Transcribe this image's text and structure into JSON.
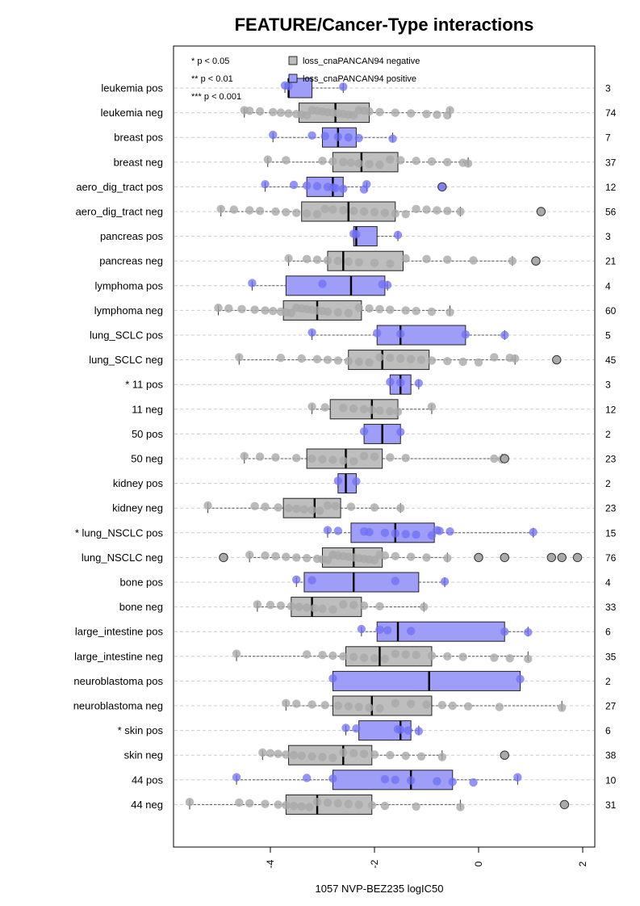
{
  "chart_data": {
    "type": "boxplot",
    "title": "FEATURE/Cancer-Type interactions",
    "xlabel": "1057 NVP-BEZ235 logIC50",
    "xlim": [
      -5.8,
      2.2
    ],
    "xticks": [
      -4,
      -2,
      0,
      2
    ],
    "grid": "horizontal dashed",
    "colors": {
      "negative": "#bebebe",
      "positive": "#9e9ef8",
      "neg_point": "#a9a9a9",
      "pos_point": "#6f6ff5"
    },
    "legend": {
      "position": "top-left",
      "significance": [
        "* p < 0.05",
        "** p < 0.01",
        "*** p < 0.001"
      ],
      "entries": [
        {
          "label": "loss_cnaPANCAN94 negative",
          "color": "#bebebe"
        },
        {
          "label": "loss_cnaPANCAN94 positive",
          "color": "#9e9ef8"
        }
      ]
    },
    "rows": [
      {
        "label": "leukemia pos",
        "n": "3",
        "group": "positive",
        "q1": -3.65,
        "median": -3.65,
        "q3": -3.2,
        "wlo": -3.72,
        "whi": -2.6,
        "outliers": [],
        "points": [
          -3.72,
          -3.65,
          -2.6
        ]
      },
      {
        "label": "leukemia neg",
        "n": "74",
        "group": "negative",
        "q1": -3.45,
        "median": -2.75,
        "q3": -2.1,
        "wlo": -4.5,
        "whi": -0.55,
        "outliers": [],
        "points": [
          -4.5,
          -4.4,
          -4.2,
          -3.95,
          -3.8,
          -3.65,
          -3.5,
          -3.4,
          -3.3,
          -3.2,
          -3.1,
          -3.0,
          -2.9,
          -2.8,
          -2.7,
          -2.6,
          -2.5,
          -2.4,
          -2.3,
          -2.2,
          -2.1,
          -1.9,
          -1.6,
          -1.3,
          -1.0,
          -0.8,
          -0.6,
          -0.55
        ]
      },
      {
        "label": "breast pos",
        "n": "7",
        "group": "positive",
        "q1": -3.0,
        "median": -2.7,
        "q3": -2.35,
        "wlo": -3.95,
        "whi": -1.65,
        "outliers": [],
        "points": [
          -3.95,
          -3.2,
          -2.95,
          -2.7,
          -2.5,
          -2.3,
          -1.65
        ]
      },
      {
        "label": "breast neg",
        "n": "37",
        "group": "negative",
        "q1": -2.8,
        "median": -2.25,
        "q3": -1.55,
        "wlo": -4.05,
        "whi": -0.2,
        "outliers": [],
        "points": [
          -4.05,
          -3.7,
          -3.0,
          -2.8,
          -2.6,
          -2.45,
          -2.3,
          -2.1,
          -1.9,
          -1.7,
          -1.5,
          -1.2,
          -0.9,
          -0.6,
          -0.3,
          -0.2
        ]
      },
      {
        "label": "aero_dig_tract pos",
        "n": "12",
        "group": "positive",
        "q1": -3.3,
        "median": -2.8,
        "q3": -2.6,
        "wlo": -4.1,
        "whi": -2.15,
        "outliers": [
          -0.7
        ],
        "points": [
          -4.1,
          -3.55,
          -3.3,
          -3.1,
          -2.9,
          -2.8,
          -2.75,
          -2.6,
          -2.2,
          -2.15
        ]
      },
      {
        "label": "aero_dig_tract neg",
        "n": "56",
        "group": "negative",
        "q1": -3.4,
        "median": -2.5,
        "q3": -1.6,
        "wlo": -4.95,
        "whi": -0.35,
        "outliers": [
          1.2
        ],
        "points": [
          -4.95,
          -4.7,
          -4.4,
          -4.2,
          -3.9,
          -3.7,
          -3.5,
          -3.3,
          -3.1,
          -2.95,
          -2.8,
          -2.6,
          -2.4,
          -2.2,
          -2.0,
          -1.8,
          -1.6,
          -1.4,
          -1.2,
          -1.0,
          -0.8,
          -0.6,
          -0.35
        ]
      },
      {
        "label": "pancreas pos",
        "n": "3",
        "group": "positive",
        "q1": -2.4,
        "median": -2.35,
        "q3": -1.95,
        "wlo": -2.4,
        "whi": -1.55,
        "outliers": [],
        "points": [
          -2.4,
          -2.35,
          -1.55
        ]
      },
      {
        "label": "pancreas neg",
        "n": "21",
        "group": "negative",
        "q1": -2.9,
        "median": -2.6,
        "q3": -1.45,
        "wlo": -3.65,
        "whi": 0.65,
        "outliers": [
          1.1
        ],
        "points": [
          -3.65,
          -3.3,
          -3.1,
          -2.9,
          -2.7,
          -2.5,
          -2.3,
          -2.0,
          -1.7,
          -1.4,
          -1.0,
          -0.6,
          -0.1,
          0.65
        ]
      },
      {
        "label": "lymphoma pos",
        "n": "4",
        "group": "positive",
        "q1": -3.7,
        "median": -2.45,
        "q3": -1.8,
        "wlo": -4.35,
        "whi": -1.75,
        "outliers": [],
        "points": [
          -4.35,
          -3.0,
          -1.85,
          -1.75
        ]
      },
      {
        "label": "lymphoma neg",
        "n": "60",
        "group": "negative",
        "q1": -3.75,
        "median": -3.1,
        "q3": -2.25,
        "wlo": -5.0,
        "whi": -0.55,
        "outliers": [],
        "points": [
          -5.0,
          -4.8,
          -4.55,
          -4.3,
          -4.1,
          -3.95,
          -3.8,
          -3.7,
          -3.6,
          -3.5,
          -3.4,
          -3.3,
          -3.2,
          -3.1,
          -3.0,
          -2.9,
          -2.7,
          -2.5,
          -2.3,
          -2.1,
          -1.9,
          -1.7,
          -1.4,
          -1.2,
          -0.9,
          -0.55
        ]
      },
      {
        "label": "lung_SCLC pos",
        "n": "5",
        "group": "positive",
        "q1": -1.95,
        "median": -1.5,
        "q3": -0.25,
        "wlo": -3.2,
        "whi": 0.5,
        "outliers": [],
        "points": [
          -3.2,
          -1.95,
          -1.5,
          -0.25,
          0.5
        ]
      },
      {
        "label": "lung_SCLC neg",
        "n": "45",
        "group": "negative",
        "q1": -2.5,
        "median": -1.85,
        "q3": -0.95,
        "wlo": -4.6,
        "whi": 0.7,
        "outliers": [
          1.5
        ],
        "points": [
          -4.6,
          -3.8,
          -3.4,
          -3.1,
          -2.9,
          -2.7,
          -2.5,
          -2.3,
          -2.1,
          -1.9,
          -1.7,
          -1.5,
          -1.3,
          -1.1,
          -0.9,
          -0.6,
          -0.3,
          0.0,
          0.3,
          0.6,
          0.7
        ]
      },
      {
        "label": "* 11 pos",
        "n": "3",
        "group": "positive",
        "q1": -1.7,
        "median": -1.5,
        "q3": -1.3,
        "wlo": -1.7,
        "whi": -1.15,
        "outliers": [],
        "points": [
          -1.7,
          -1.5,
          -1.15
        ]
      },
      {
        "label": "11 neg",
        "n": "12",
        "group": "negative",
        "q1": -2.85,
        "median": -2.05,
        "q3": -1.55,
        "wlo": -3.2,
        "whi": -0.9,
        "outliers": [],
        "points": [
          -3.2,
          -2.95,
          -2.6,
          -2.4,
          -2.2,
          -2.05,
          -1.9,
          -1.7,
          -1.55,
          -0.9
        ]
      },
      {
        "label": "50 pos",
        "n": "2",
        "group": "positive",
        "q1": -2.2,
        "median": -1.85,
        "q3": -1.5,
        "wlo": -2.2,
        "whi": -1.5,
        "outliers": [],
        "points": [
          -2.2,
          -1.5
        ]
      },
      {
        "label": "50 neg",
        "n": "23",
        "group": "negative",
        "q1": -3.3,
        "median": -2.55,
        "q3": -1.85,
        "wlo": -4.5,
        "whi": 0.45,
        "outliers": [
          0.5
        ],
        "points": [
          -4.5,
          -4.2,
          -3.9,
          -3.5,
          -3.2,
          -3.0,
          -2.8,
          -2.6,
          -2.4,
          -2.2,
          -2.0,
          -1.7,
          -1.4,
          0.3,
          0.45
        ]
      },
      {
        "label": "kidney pos",
        "n": "2",
        "group": "positive",
        "q1": -2.7,
        "median": -2.55,
        "q3": -2.35,
        "wlo": -2.7,
        "whi": -2.35,
        "outliers": [],
        "points": [
          -2.7,
          -2.35
        ]
      },
      {
        "label": "kidney neg",
        "n": "23",
        "group": "negative",
        "q1": -3.75,
        "median": -3.15,
        "q3": -2.65,
        "wlo": -5.2,
        "whi": -1.5,
        "outliers": [],
        "points": [
          -5.2,
          -4.3,
          -4.1,
          -3.85,
          -3.65,
          -3.5,
          -3.35,
          -3.2,
          -3.05,
          -2.9,
          -2.75,
          -2.45,
          -2.0,
          -1.5
        ]
      },
      {
        "label": "* lung_NSCLC pos",
        "n": "15",
        "group": "positive",
        "q1": -2.45,
        "median": -1.6,
        "q3": -0.85,
        "wlo": -2.9,
        "whi": 1.05,
        "outliers": [],
        "points": [
          -2.9,
          -2.7,
          -2.2,
          -2.1,
          -1.8,
          -1.6,
          -1.4,
          -1.2,
          -0.9,
          -0.8,
          -0.75,
          -0.55,
          1.05
        ]
      },
      {
        "label": "lung_NSCLC neg",
        "n": "76",
        "group": "negative",
        "q1": -3.0,
        "median": -2.4,
        "q3": -1.85,
        "wlo": -4.4,
        "whi": -0.6,
        "outliers": [
          -4.9,
          0.0,
          0.5,
          1.4,
          1.6,
          1.9
        ],
        "points": [
          -4.4,
          -4.1,
          -3.9,
          -3.7,
          -3.5,
          -3.3,
          -3.1,
          -3.0,
          -2.9,
          -2.8,
          -2.7,
          -2.6,
          -2.5,
          -2.4,
          -2.3,
          -2.2,
          -2.1,
          -2.0,
          -1.9,
          -1.8,
          -1.6,
          -1.3,
          -1.0,
          -0.6
        ]
      },
      {
        "label": "bone pos",
        "n": "4",
        "group": "positive",
        "q1": -3.35,
        "median": -2.4,
        "q3": -1.15,
        "wlo": -3.5,
        "whi": -0.65,
        "outliers": [],
        "points": [
          -3.5,
          -3.2,
          -1.6,
          -0.65
        ]
      },
      {
        "label": "bone neg",
        "n": "33",
        "group": "negative",
        "q1": -3.6,
        "median": -3.2,
        "q3": -2.25,
        "wlo": -4.25,
        "whi": -1.05,
        "outliers": [],
        "points": [
          -4.25,
          -4.0,
          -3.8,
          -3.6,
          -3.45,
          -3.3,
          -3.15,
          -3.0,
          -2.8,
          -2.6,
          -2.4,
          -2.2,
          -1.9,
          -1.05
        ]
      },
      {
        "label": "large_intestine pos",
        "n": "6",
        "group": "positive",
        "q1": -1.95,
        "median": -1.55,
        "q3": 0.5,
        "wlo": -2.25,
        "whi": 0.95,
        "outliers": [],
        "points": [
          -2.25,
          -1.9,
          -1.75,
          -1.3,
          0.5,
          0.95
        ]
      },
      {
        "label": "large_intestine neg",
        "n": "35",
        "group": "negative",
        "q1": -2.55,
        "median": -1.9,
        "q3": -0.9,
        "wlo": -4.65,
        "whi": 0.95,
        "outliers": [],
        "points": [
          -4.65,
          -3.3,
          -3.0,
          -2.8,
          -2.6,
          -2.4,
          -2.2,
          -2.0,
          -1.8,
          -1.6,
          -1.4,
          -1.2,
          -0.9,
          -0.6,
          -0.3,
          0.3,
          0.6,
          0.95
        ]
      },
      {
        "label": "neuroblastoma pos",
        "n": "2",
        "group": "positive",
        "q1": -2.8,
        "median": -0.95,
        "q3": 0.8,
        "wlo": -2.8,
        "whi": 0.8,
        "outliers": [],
        "points": [
          -2.8,
          0.8
        ]
      },
      {
        "label": "neuroblastoma neg",
        "n": "27",
        "group": "negative",
        "q1": -2.8,
        "median": -2.05,
        "q3": -0.9,
        "wlo": -3.7,
        "whi": 1.6,
        "outliers": [],
        "points": [
          -3.7,
          -3.5,
          -3.2,
          -2.95,
          -2.7,
          -2.5,
          -2.3,
          -2.1,
          -1.9,
          -1.6,
          -1.3,
          -1.0,
          -0.7,
          -0.5,
          -0.2,
          0.4,
          1.6
        ]
      },
      {
        "label": "* skin pos",
        "n": "6",
        "group": "positive",
        "q1": -2.3,
        "median": -1.5,
        "q3": -1.3,
        "wlo": -2.55,
        "whi": -1.15,
        "outliers": [],
        "points": [
          -2.55,
          -2.35,
          -1.55,
          -1.5,
          -1.35,
          -1.15
        ]
      },
      {
        "label": "skin neg",
        "n": "38",
        "group": "negative",
        "q1": -3.65,
        "median": -2.6,
        "q3": -2.05,
        "wlo": -4.15,
        "whi": -0.7,
        "outliers": [
          0.5
        ],
        "points": [
          -4.15,
          -4.0,
          -3.85,
          -3.7,
          -3.55,
          -3.4,
          -3.2,
          -3.0,
          -2.8,
          -2.6,
          -2.4,
          -2.2,
          -2.0,
          -1.7,
          -1.4,
          -1.1,
          -0.7
        ]
      },
      {
        "label": "44 pos",
        "n": "10",
        "group": "positive",
        "q1": -2.8,
        "median": -1.3,
        "q3": -0.5,
        "wlo": -4.65,
        "whi": 0.75,
        "outliers": [],
        "points": [
          -4.65,
          -3.3,
          -2.8,
          -1.8,
          -1.6,
          -1.3,
          -0.8,
          -0.5,
          -0.1,
          0.75
        ]
      },
      {
        "label": "44 neg",
        "n": "31",
        "group": "negative",
        "q1": -3.7,
        "median": -3.1,
        "q3": -2.05,
        "wlo": -5.55,
        "whi": -0.35,
        "outliers": [
          1.65
        ],
        "points": [
          -5.55,
          -4.6,
          -4.4,
          -4.1,
          -3.85,
          -3.7,
          -3.55,
          -3.4,
          -3.25,
          -3.1,
          -2.9,
          -2.7,
          -2.5,
          -2.3,
          -2.05,
          -1.8,
          -1.2,
          -0.35
        ]
      }
    ]
  }
}
